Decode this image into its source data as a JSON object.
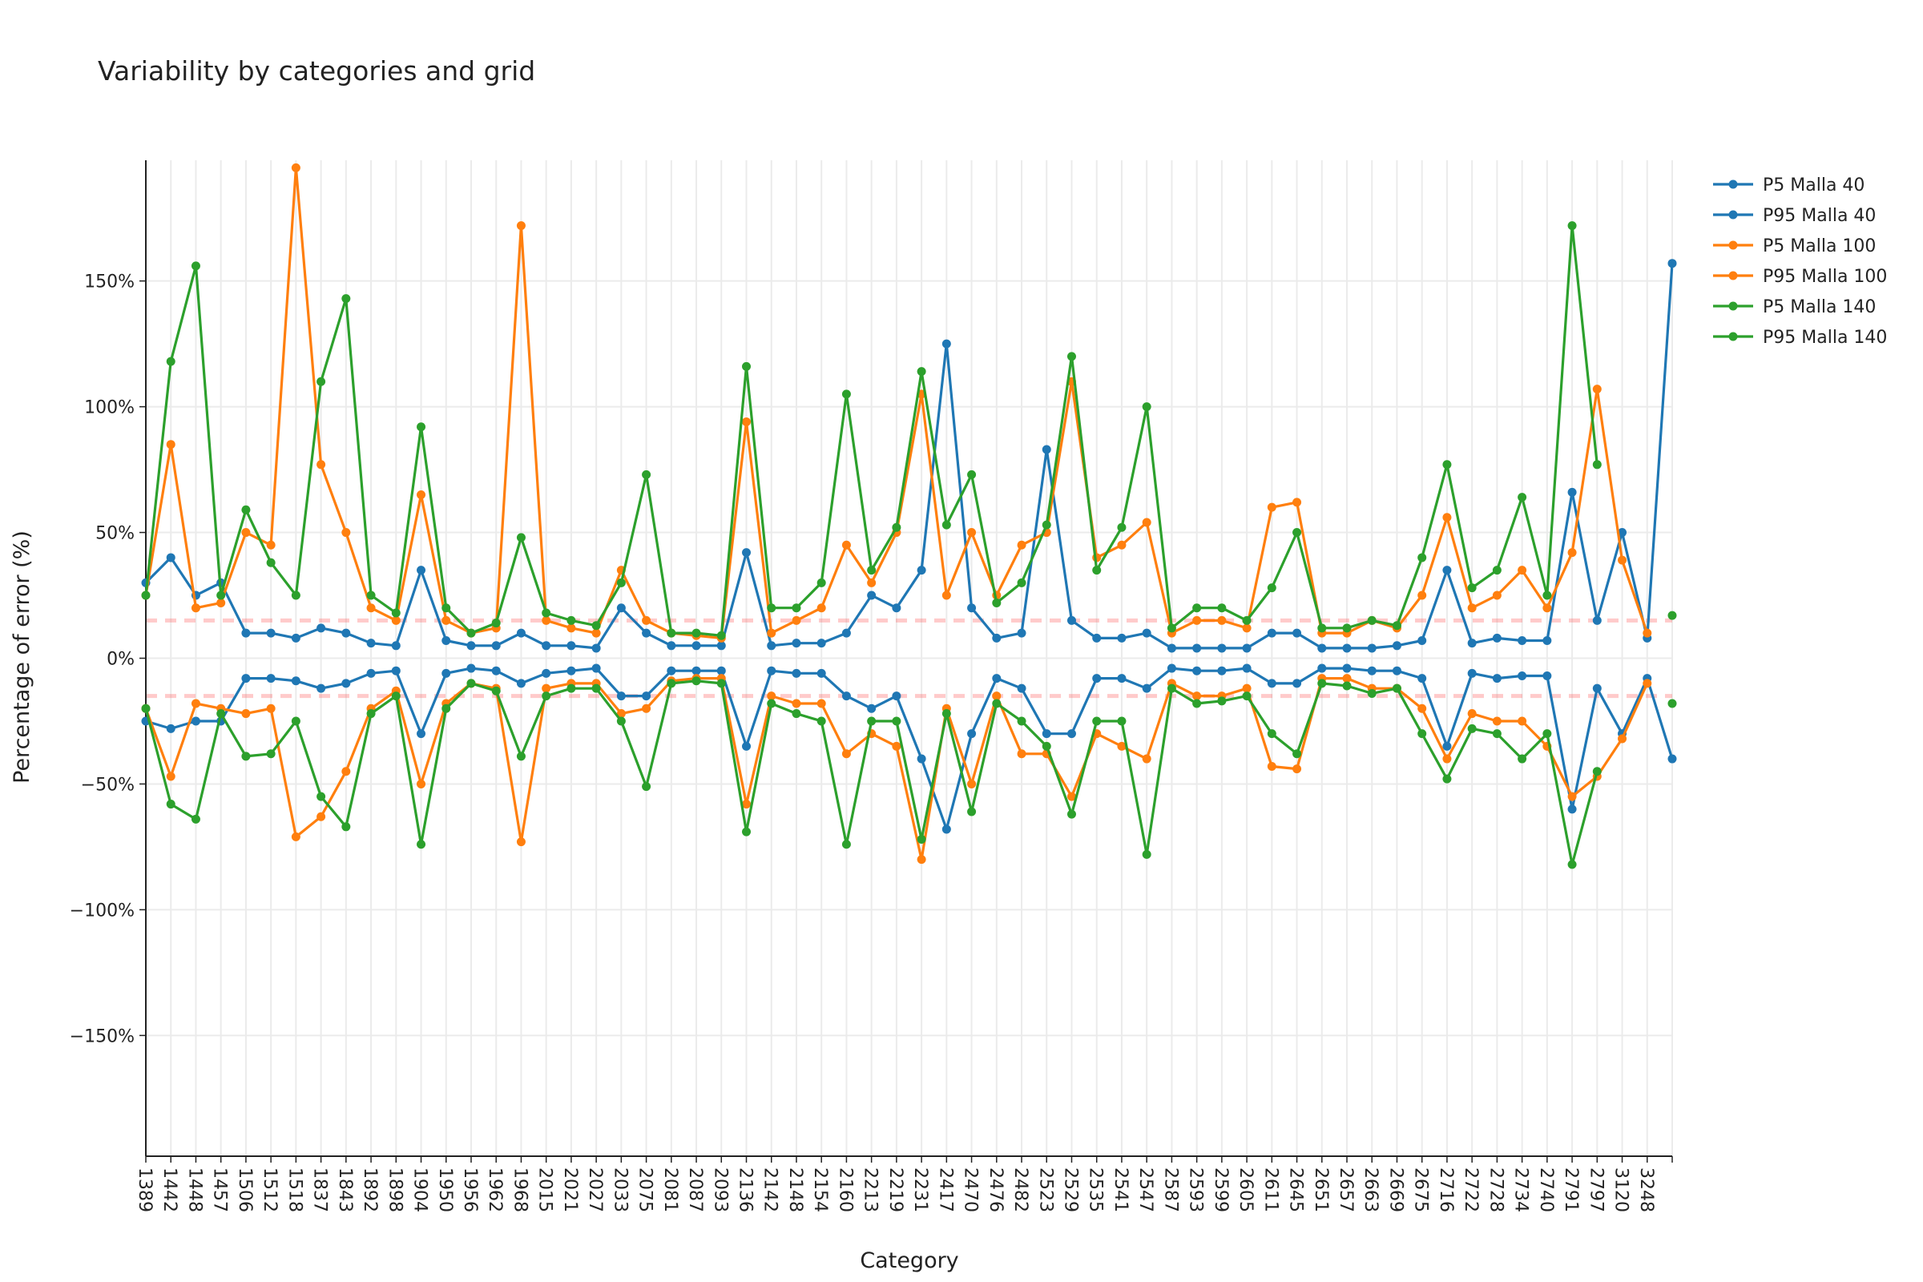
{
  "chart_data": {
    "type": "line",
    "title": "Variability by categories and grid",
    "x_label": "Category",
    "y_label": "Percentage of error (%)",
    "categories": [
      "1389",
      "1442",
      "1448",
      "1457",
      "1506",
      "1512",
      "1518",
      "1837",
      "1843",
      "1892",
      "1898",
      "1904",
      "1950",
      "1956",
      "1962",
      "1968",
      "2015",
      "2021",
      "2027",
      "2033",
      "2075",
      "2081",
      "2087",
      "2093",
      "2136",
      "2142",
      "2148",
      "2154",
      "2160",
      "2213",
      "2219",
      "2231",
      "2417",
      "2470",
      "2476",
      "2482",
      "2523",
      "2529",
      "2535",
      "2541",
      "2547",
      "2587",
      "2593",
      "2599",
      "2605",
      "2611",
      "2645",
      "2651",
      "2657",
      "2663",
      "2669",
      "2675",
      "2716",
      "2722",
      "2728",
      "2734",
      "2740",
      "2791",
      "2797",
      "3120",
      "3248",
      null
    ],
    "series": [
      {
        "name": "P5 Malla 40",
        "color": "#1f77b4",
        "values": [
          -25,
          -28,
          -25,
          -25,
          -8,
          -8,
          -9,
          -12,
          -10,
          -6,
          -5,
          -30,
          -6,
          -4,
          -5,
          -10,
          -6,
          -5,
          -4,
          -15,
          -15,
          -5,
          -5,
          -5,
          -35,
          -5,
          -6,
          -6,
          -15,
          -20,
          -15,
          -40,
          -68,
          -30,
          -8,
          -12,
          -30,
          -30,
          -8,
          -8,
          -12,
          -4,
          -5,
          -5,
          -4,
          -10,
          -10,
          -4,
          -4,
          -5,
          -5,
          -8,
          -35,
          -6,
          -8,
          -7,
          -7,
          -60,
          -12,
          -30,
          -8,
          -40
        ]
      },
      {
        "name": "P95 Malla 40",
        "color": "#1f77b4",
        "values": [
          30,
          40,
          25,
          30,
          10,
          10,
          8,
          12,
          10,
          6,
          5,
          35,
          7,
          5,
          5,
          10,
          5,
          5,
          4,
          20,
          10,
          5,
          5,
          5,
          42,
          5,
          6,
          6,
          10,
          25,
          20,
          35,
          125,
          20,
          8,
          10,
          83,
          15,
          8,
          8,
          10,
          4,
          4,
          4,
          4,
          10,
          10,
          4,
          4,
          4,
          5,
          7,
          35,
          6,
          8,
          7,
          7,
          66,
          15,
          50,
          8,
          157
        ]
      },
      {
        "name": "P5 Malla 100",
        "color": "#ff7f0e",
        "values": [
          -20,
          -47,
          -18,
          -20,
          -22,
          -20,
          -71,
          -63,
          -45,
          -20,
          -13,
          -50,
          -18,
          -10,
          -12,
          -73,
          -12,
          -10,
          -10,
          -22,
          -20,
          -9,
          -8,
          -8,
          -58,
          -15,
          -18,
          -18,
          -38,
          -30,
          -35,
          -80,
          -20,
          -50,
          -15,
          -38,
          -38,
          -55,
          -30,
          -35,
          -40,
          -10,
          -15,
          -15,
          -12,
          -43,
          -44,
          -8,
          -8,
          -12,
          -12,
          -20,
          -40,
          -22,
          -25,
          -25,
          -35,
          -55,
          -47,
          -32,
          -10,
          null
        ]
      },
      {
        "name": "P95 Malla 100",
        "color": "#ff7f0e",
        "values": [
          25,
          85,
          20,
          22,
          50,
          45,
          195,
          77,
          50,
          20,
          15,
          65,
          15,
          10,
          12,
          172,
          15,
          12,
          10,
          35,
          15,
          10,
          9,
          8,
          94,
          10,
          15,
          20,
          45,
          30,
          50,
          105,
          25,
          50,
          25,
          45,
          50,
          110,
          40,
          45,
          54,
          10,
          15,
          15,
          12,
          60,
          62,
          10,
          10,
          15,
          12,
          25,
          56,
          20,
          25,
          35,
          20,
          42,
          107,
          39,
          10,
          null
        ]
      },
      {
        "name": "P5 Malla 140",
        "color": "#2ca02c",
        "values": [
          -20,
          -58,
          -64,
          -22,
          -39,
          -38,
          -25,
          -55,
          -67,
          -22,
          -15,
          -74,
          -20,
          -10,
          -13,
          -39,
          -15,
          -12,
          -12,
          -25,
          -51,
          -10,
          -9,
          -10,
          -69,
          -18,
          -22,
          -25,
          -74,
          -25,
          -25,
          -72,
          -22,
          -61,
          -18,
          -25,
          -35,
          -62,
          -25,
          -25,
          -78,
          -12,
          -18,
          -17,
          -15,
          -30,
          -38,
          -10,
          -11,
          -14,
          -12,
          -30,
          -48,
          -28,
          -30,
          -40,
          -30,
          -82,
          -45,
          null,
          null,
          -18
        ]
      },
      {
        "name": "P95 Malla 140",
        "color": "#2ca02c",
        "values": [
          25,
          118,
          156,
          25,
          59,
          38,
          25,
          110,
          143,
          25,
          18,
          92,
          20,
          10,
          14,
          48,
          18,
          15,
          13,
          30,
          73,
          10,
          10,
          9,
          116,
          20,
          20,
          30,
          105,
          35,
          52,
          114,
          53,
          73,
          22,
          30,
          53,
          120,
          35,
          52,
          100,
          12,
          20,
          20,
          15,
          28,
          50,
          12,
          12,
          15,
          13,
          40,
          77,
          28,
          35,
          64,
          25,
          172,
          77,
          null,
          null,
          17
        ]
      }
    ],
    "ylim": [
      -198,
      198
    ],
    "yticks": [
      {
        "value": -150,
        "label": "−150%"
      },
      {
        "value": -100,
        "label": "−100%"
      },
      {
        "value": -50,
        "label": "−50%"
      },
      {
        "value": 0,
        "label": "0%"
      },
      {
        "value": 50,
        "label": "50%"
      },
      {
        "value": 100,
        "label": "100%"
      },
      {
        "value": 150,
        "label": "150%"
      }
    ],
    "reference_lines": [
      15,
      -15
    ],
    "reference_color": "rgba(255,80,80,0.3)",
    "grid": true,
    "legend": "right"
  }
}
